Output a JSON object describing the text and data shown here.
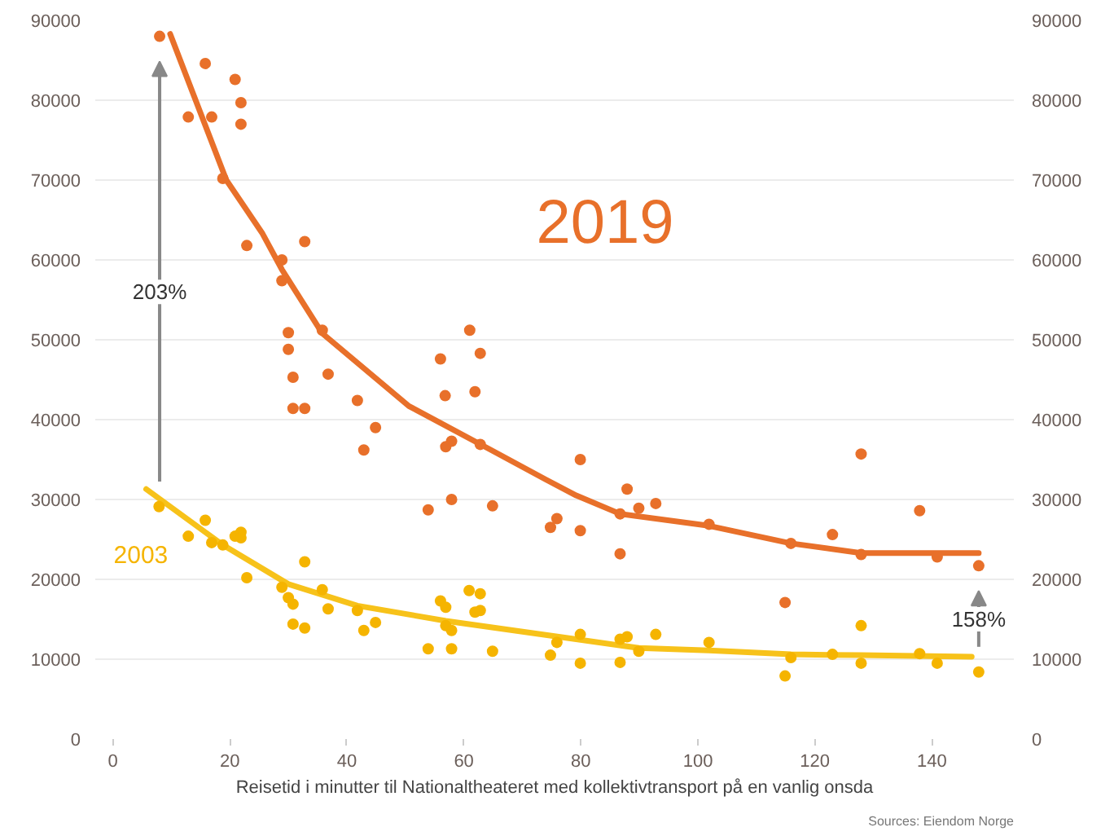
{
  "chart_data": {
    "type": "scatter",
    "xlabel": "Reisetid i minutter til Nationaltheateret med kollektivtransport på en vanlig onsda",
    "xlim": [
      -3,
      154
    ],
    "xticks": [
      0,
      20,
      40,
      60,
      80,
      100,
      120,
      140
    ],
    "ylim": [
      0,
      90000
    ],
    "yticks": [
      0,
      10000,
      20000,
      30000,
      40000,
      50000,
      60000,
      70000,
      80000,
      90000
    ],
    "y2lim": [
      0,
      90000
    ],
    "y2ticks": [
      0,
      10000,
      20000,
      30000,
      40000,
      50000,
      60000,
      70000,
      80000,
      90000
    ],
    "grid": "y",
    "legend": false,
    "marker": "circle",
    "series": [
      {
        "name": "2019",
        "color": "#e8702a",
        "x": [
          8,
          15.8,
          20.9,
          21.9,
          21.9,
          12.9,
          16.9,
          18.8,
          22.9,
          32.8,
          28.9,
          28.9,
          30,
          30,
          30.8,
          35.8,
          36.8,
          56,
          61,
          62.8,
          56.8,
          61.9,
          41.8,
          30.8,
          32.8,
          44.9,
          42.9,
          56.9,
          57.9,
          62.8,
          53.9,
          57.9,
          64.9,
          74.8,
          75.9,
          79.9,
          79.9,
          86.7,
          86.7,
          87.9,
          89.9,
          92.8,
          101.9,
          114.9,
          115.9,
          123,
          127.9,
          127.9,
          137.9,
          140.9,
          148
        ],
        "values": [
          88000,
          84600,
          82600,
          79700,
          77000,
          77900,
          77900,
          70200,
          61800,
          62300,
          60000,
          57400,
          50900,
          48800,
          45300,
          51200,
          45700,
          47600,
          51200,
          48300,
          43000,
          43500,
          42400,
          41400,
          41400,
          39000,
          36200,
          36600,
          37300,
          36900,
          28700,
          30000,
          29200,
          26500,
          27600,
          35000,
          26100,
          23200,
          28200,
          31300,
          28900,
          29500,
          26900,
          17100,
          24500,
          25600,
          35700,
          23100,
          28600,
          22800,
          21700
        ]
      },
      {
        "name": "2003",
        "color": "#f5b400",
        "x": [
          7.9,
          12.9,
          15.8,
          16.9,
          18.8,
          20.9,
          21.9,
          21.9,
          22.9,
          28.9,
          30,
          30.8,
          32.8,
          30.8,
          32.8,
          35.8,
          36.8,
          41.8,
          42.9,
          44.9,
          53.9,
          56,
          56.9,
          56.9,
          57.9,
          57.9,
          60.9,
          62.8,
          61.9,
          62.8,
          64.9,
          74.8,
          75.9,
          79.9,
          79.9,
          86.7,
          87.9,
          86.7,
          89.9,
          92.8,
          101.9,
          114.9,
          115.9,
          123,
          127.9,
          127.9,
          137.9,
          140.9,
          148
        ],
        "values": [
          29100,
          25400,
          27400,
          24600,
          24300,
          25400,
          25900,
          25200,
          20200,
          19000,
          17700,
          16900,
          22200,
          14400,
          13900,
          18700,
          16300,
          16100,
          13600,
          14600,
          11300,
          17300,
          16500,
          14200,
          13600,
          11300,
          18600,
          18200,
          15900,
          16100,
          11000,
          10500,
          12100,
          13100,
          9500,
          12500,
          12800,
          9600,
          11000,
          13100,
          12100,
          7900,
          10200,
          10600,
          14200,
          9500,
          10700,
          9500,
          8400
        ]
      },
      {
        "type": "line",
        "marker": "none",
        "color": "#e8702a",
        "x": [
          9.8,
          19.4,
          25.5,
          28.9,
          35.8,
          50.6,
          64.9,
          74,
          79.2,
          86.7,
          101.9,
          115.9,
          127.9,
          148
        ],
        "values": [
          88300,
          70000,
          63400,
          58800,
          50800,
          41700,
          36100,
          32500,
          30500,
          28200,
          26700,
          24500,
          23300,
          23300
        ]
      },
      {
        "type": "line",
        "marker": "none",
        "color": "#f7c21a",
        "x": [
          5.7,
          18.8,
          30,
          41.8,
          56.9,
          79.2,
          89.9,
          101.9,
          115.9,
          127.9,
          146.8
        ],
        "values": [
          31300,
          24300,
          19400,
          16700,
          14800,
          12500,
          11400,
          11100,
          10600,
          10500,
          10300
        ]
      }
    ],
    "annotations": [
      {
        "text": "203%",
        "x": 8,
        "y": 56000
      },
      {
        "text": "158%",
        "x": 148,
        "y": 15000
      },
      "Sources: Eiendom Norge"
    ]
  }
}
